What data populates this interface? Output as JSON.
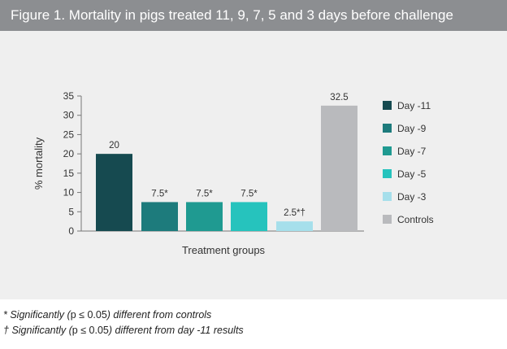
{
  "header": {
    "title": "Figure 1. Mortality in pigs treated 11, 9, 7, 5 and 3 days before challenge"
  },
  "chart_data": {
    "type": "bar",
    "categories": [
      "Day -11",
      "Day -9",
      "Day -7",
      "Day -5",
      "Day -3",
      "Controls"
    ],
    "values": [
      20,
      7.5,
      7.5,
      7.5,
      2.5,
      32.5
    ],
    "data_labels": [
      "20",
      "7.5*",
      "7.5*",
      "7.5*",
      "2.5*†",
      "32.5"
    ],
    "colors": [
      "#164a50",
      "#1d7b7c",
      "#1f9a91",
      "#26c3bd",
      "#a6dfeb",
      "#b9babd"
    ],
    "xlabel": "Treatment groups",
    "ylabel": "% mortality",
    "ylim": [
      0,
      35
    ],
    "yticks": [
      0,
      5,
      10,
      15,
      20,
      25,
      30,
      35
    ],
    "grid": false,
    "legend": {
      "placement": "right",
      "entries": [
        "Day -11",
        "Day -9",
        "Day -7",
        "Day -5",
        "Day -3",
        "Controls"
      ]
    }
  },
  "footnotes": {
    "note1_marker": "* ",
    "note1_text": "Significantly (",
    "note1_stat": "p ≤ 0.05",
    "note1_rest": ") different from controls",
    "note2_marker": "† ",
    "note2_text": "Significantly (",
    "note2_stat": "p ≤ 0.05",
    "note2_rest": ") different from day -11 results"
  }
}
